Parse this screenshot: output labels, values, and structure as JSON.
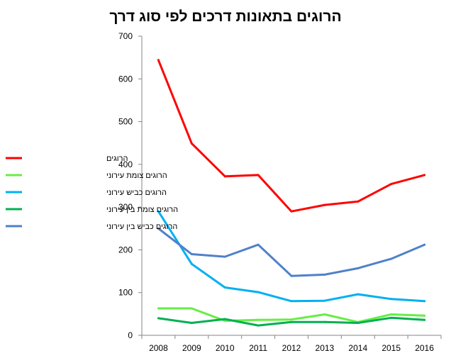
{
  "chart_data": {
    "type": "line",
    "title": "הרוגים בתאונות דרכים לפי סוג דרך",
    "x": [
      "2008",
      "2009",
      "2010",
      "2011",
      "2012",
      "2013",
      "2014",
      "2015",
      "2016"
    ],
    "ylim": [
      0,
      700
    ],
    "yticks": [
      0,
      100,
      200,
      300,
      400,
      500,
      600,
      700
    ],
    "grid": false,
    "legend_position": "left",
    "series": [
      {
        "name": "הרוגים",
        "color": "#ff0000",
        "values": [
          644,
          449,
          372,
          375,
          290,
          305,
          313,
          354,
          375
        ]
      },
      {
        "name": "הרוגים  צומת עירוני",
        "color": "#66ee44",
        "values": [
          63,
          63,
          34,
          36,
          37,
          49,
          31,
          49,
          46
        ]
      },
      {
        "name": "הרוגים כביש עירוני",
        "color": "#00b0f0",
        "values": [
          290,
          167,
          112,
          101,
          80,
          81,
          96,
          85,
          80
        ]
      },
      {
        "name": "הרוגים צומת בין עירוני",
        "color": "#00b050",
        "values": [
          40,
          29,
          38,
          23,
          31,
          31,
          29,
          41,
          36
        ]
      },
      {
        "name": "הרוגים כביש בין עירוני",
        "color": "#4f81c9",
        "values": [
          250,
          190,
          184,
          212,
          139,
          142,
          157,
          179,
          212
        ]
      }
    ]
  }
}
